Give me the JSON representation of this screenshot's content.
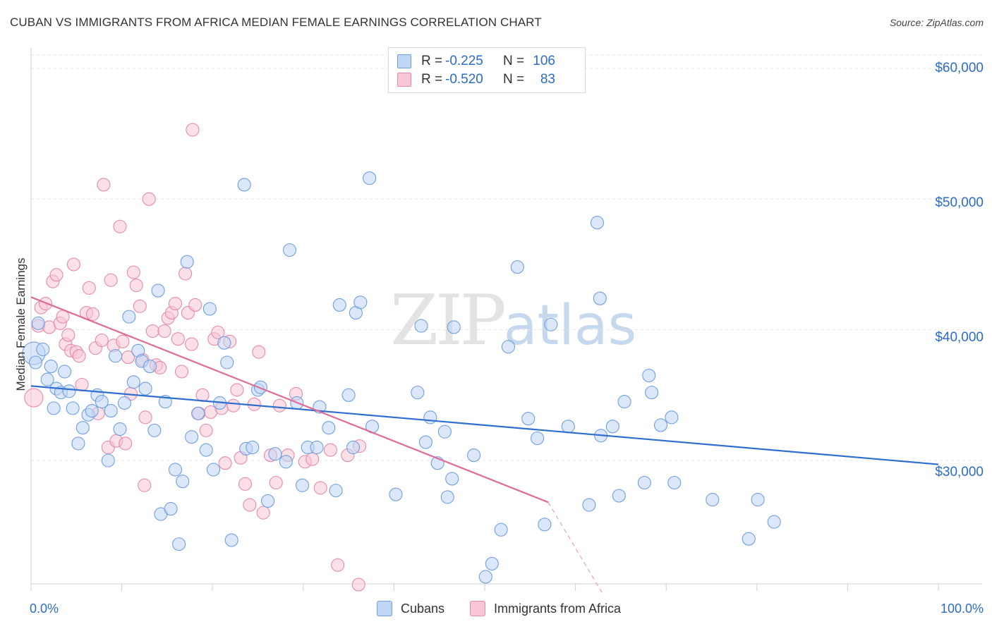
{
  "title": "CUBAN VS IMMIGRANTS FROM AFRICA MEDIAN FEMALE EARNINGS CORRELATION CHART",
  "source": "Source: ZipAtlas.com",
  "watermark": {
    "zip": "ZIP",
    "atlas": "atlas"
  },
  "legend_top": {
    "rows": [
      {
        "r_label": "R =",
        "r_value": "-0.225",
        "n_label": "N =",
        "n_value": "106",
        "color": "#6f9fe0",
        "fill": "#c0d6f5"
      },
      {
        "r_label": "R =",
        "r_value": "-0.520",
        "n_label": "N =",
        "n_value": "83",
        "color": "#e68aa8",
        "fill": "#f8c6d6"
      }
    ]
  },
  "y_axis": {
    "label": "Median Female Earnings",
    "ticks": [
      "$60,000",
      "$50,000",
      "$40,000",
      "$30,000"
    ]
  },
  "x_axis": {
    "min_label": "0.0%",
    "max_label": "100.0%"
  },
  "bottom_legend": [
    "Cubans",
    "Immigrants from Africa"
  ],
  "chart_data": {
    "type": "scatter",
    "xlabel": "",
    "ylabel": "Median Female Earnings",
    "xlim": [
      0,
      100
    ],
    "ylim": [
      19500,
      62500
    ],
    "y_ticks": [
      30000,
      40000,
      50000,
      60000
    ],
    "series": [
      {
        "name": "Cubans",
        "color": "#6f9fe0",
        "fill": "#c0d6f5",
        "trend": {
          "x0": 0,
          "y0": 35700,
          "x1": 100,
          "y1": 29700,
          "x_end_solid": 100
        },
        "points": [
          [
            0.3,
            38200
          ],
          [
            0.5,
            37500
          ],
          [
            0.8,
            40500
          ],
          [
            1.3,
            38500
          ],
          [
            1.8,
            36200
          ],
          [
            2.2,
            37200
          ],
          [
            2.5,
            34000
          ],
          [
            2.8,
            35500
          ],
          [
            3.3,
            35200
          ],
          [
            3.7,
            36800
          ],
          [
            4.2,
            35300
          ],
          [
            4.6,
            34000
          ],
          [
            5.2,
            31300
          ],
          [
            5.7,
            32500
          ],
          [
            6.3,
            33500
          ],
          [
            6.7,
            33800
          ],
          [
            7.3,
            35000
          ],
          [
            7.8,
            34500
          ],
          [
            8.5,
            30000
          ],
          [
            8.8,
            33800
          ],
          [
            9.3,
            38000
          ],
          [
            9.8,
            32400
          ],
          [
            10.3,
            34400
          ],
          [
            10.8,
            41000
          ],
          [
            11.3,
            36000
          ],
          [
            11.8,
            38400
          ],
          [
            12.2,
            37600
          ],
          [
            12.6,
            35500
          ],
          [
            13.1,
            37200
          ],
          [
            13.6,
            32300
          ],
          [
            14.0,
            43000
          ],
          [
            14.3,
            25900
          ],
          [
            14.8,
            34500
          ],
          [
            15.4,
            26300
          ],
          [
            15.9,
            29300
          ],
          [
            16.3,
            23600
          ],
          [
            16.7,
            28400
          ],
          [
            17.2,
            45200
          ],
          [
            17.7,
            31800
          ],
          [
            18.4,
            33600
          ],
          [
            19.3,
            30800
          ],
          [
            19.7,
            41600
          ],
          [
            20.1,
            29300
          ],
          [
            20.8,
            34400
          ],
          [
            21.3,
            39000
          ],
          [
            21.6,
            37500
          ],
          [
            22.1,
            23900
          ],
          [
            23.5,
            51100
          ],
          [
            23.7,
            30900
          ],
          [
            24.4,
            31000
          ],
          [
            25.0,
            35400
          ],
          [
            25.3,
            35600
          ],
          [
            26.1,
            26900
          ],
          [
            26.9,
            30500
          ],
          [
            28.1,
            29900
          ],
          [
            28.5,
            46100
          ],
          [
            29.3,
            34400
          ],
          [
            29.9,
            28100
          ],
          [
            30.5,
            31000
          ],
          [
            31.5,
            31000
          ],
          [
            31.8,
            34100
          ],
          [
            32.8,
            32500
          ],
          [
            33.6,
            27700
          ],
          [
            34.0,
            41900
          ],
          [
            35.0,
            35000
          ],
          [
            35.5,
            31000
          ],
          [
            35.8,
            41300
          ],
          [
            36.3,
            42100
          ],
          [
            37.3,
            51600
          ],
          [
            37.6,
            32600
          ],
          [
            40.2,
            27400
          ],
          [
            42.6,
            35200
          ],
          [
            43.0,
            40300
          ],
          [
            43.5,
            31400
          ],
          [
            44.0,
            33300
          ],
          [
            44.8,
            29800
          ],
          [
            45.6,
            32200
          ],
          [
            45.9,
            27200
          ],
          [
            46.4,
            28600
          ],
          [
            46.6,
            40200
          ],
          [
            48.8,
            30400
          ],
          [
            50.1,
            21100
          ],
          [
            50.8,
            22100
          ],
          [
            51.8,
            24700
          ],
          [
            52.6,
            38700
          ],
          [
            53.6,
            44800
          ],
          [
            54.8,
            33200
          ],
          [
            55.8,
            31700
          ],
          [
            56.6,
            25100
          ],
          [
            57.3,
            40400
          ],
          [
            59.2,
            32600
          ],
          [
            61.5,
            26600
          ],
          [
            62.4,
            48200
          ],
          [
            62.7,
            42400
          ],
          [
            62.8,
            31900
          ],
          [
            64.1,
            32600
          ],
          [
            64.8,
            27300
          ],
          [
            65.4,
            34500
          ],
          [
            67.6,
            28300
          ],
          [
            68.1,
            36500
          ],
          [
            68.4,
            35200
          ],
          [
            69.4,
            32700
          ],
          [
            70.6,
            33300
          ],
          [
            70.9,
            28300
          ],
          [
            75.1,
            27000
          ],
          [
            79.1,
            24000
          ],
          [
            80.1,
            27000
          ],
          [
            81.9,
            25300
          ]
        ]
      },
      {
        "name": "Immigrants from Africa",
        "color": "#e68aa8",
        "fill": "#f8c6d6",
        "trend": {
          "x0": 0,
          "y0": 42500,
          "x1": 57,
          "y1": 26800,
          "x_end_dash": 63,
          "y_end_dash": 19800
        },
        "points": [
          [
            0.3,
            34800
          ],
          [
            0.8,
            40300
          ],
          [
            1.1,
            41700
          ],
          [
            1.6,
            42000
          ],
          [
            2.0,
            40200
          ],
          [
            2.4,
            43700
          ],
          [
            2.8,
            44200
          ],
          [
            3.2,
            40500
          ],
          [
            3.5,
            41000
          ],
          [
            3.8,
            38900
          ],
          [
            4.1,
            39600
          ],
          [
            4.4,
            38400
          ],
          [
            4.7,
            45000
          ],
          [
            5.0,
            38300
          ],
          [
            5.3,
            38000
          ],
          [
            5.6,
            35800
          ],
          [
            6.1,
            41300
          ],
          [
            6.4,
            43200
          ],
          [
            6.8,
            41200
          ],
          [
            7.1,
            38600
          ],
          [
            7.4,
            33600
          ],
          [
            7.8,
            39200
          ],
          [
            8.0,
            51100
          ],
          [
            8.5,
            31000
          ],
          [
            8.8,
            43800
          ],
          [
            9.1,
            38800
          ],
          [
            9.4,
            31500
          ],
          [
            9.8,
            47900
          ],
          [
            10.1,
            39100
          ],
          [
            10.4,
            31300
          ],
          [
            10.7,
            37900
          ],
          [
            11.0,
            35100
          ],
          [
            11.3,
            44400
          ],
          [
            11.6,
            43400
          ],
          [
            12.0,
            41800
          ],
          [
            12.3,
            37700
          ],
          [
            12.6,
            33300
          ],
          [
            13.0,
            50000
          ],
          [
            13.4,
            39900
          ],
          [
            13.8,
            37300
          ],
          [
            14.2,
            37100
          ],
          [
            14.7,
            39900
          ],
          [
            15.1,
            40900
          ],
          [
            15.5,
            41300
          ],
          [
            15.9,
            42000
          ],
          [
            16.2,
            39300
          ],
          [
            16.6,
            36800
          ],
          [
            17.0,
            44300
          ],
          [
            17.3,
            41300
          ],
          [
            17.7,
            38900
          ],
          [
            18.1,
            41900
          ],
          [
            18.5,
            33600
          ],
          [
            18.9,
            35000
          ],
          [
            19.3,
            32300
          ],
          [
            19.8,
            33700
          ],
          [
            20.2,
            39300
          ],
          [
            20.6,
            39800
          ],
          [
            21.0,
            34000
          ],
          [
            21.4,
            29800
          ],
          [
            21.9,
            39100
          ],
          [
            22.3,
            34200
          ],
          [
            22.7,
            35400
          ],
          [
            23.1,
            30200
          ],
          [
            23.6,
            28200
          ],
          [
            24.1,
            26600
          ],
          [
            24.6,
            34300
          ],
          [
            25.1,
            38300
          ],
          [
            25.6,
            26000
          ],
          [
            26.4,
            30400
          ],
          [
            27.0,
            28300
          ],
          [
            27.4,
            34200
          ],
          [
            28.3,
            30400
          ],
          [
            29.2,
            35100
          ],
          [
            30.2,
            29900
          ],
          [
            31.0,
            30100
          ],
          [
            31.9,
            27900
          ],
          [
            33.0,
            30800
          ],
          [
            33.8,
            22000
          ],
          [
            34.9,
            30400
          ],
          [
            36.2,
            31100
          ],
          [
            17.8,
            55300
          ],
          [
            12.5,
            28100
          ],
          [
            36.1,
            20500
          ]
        ]
      }
    ]
  }
}
